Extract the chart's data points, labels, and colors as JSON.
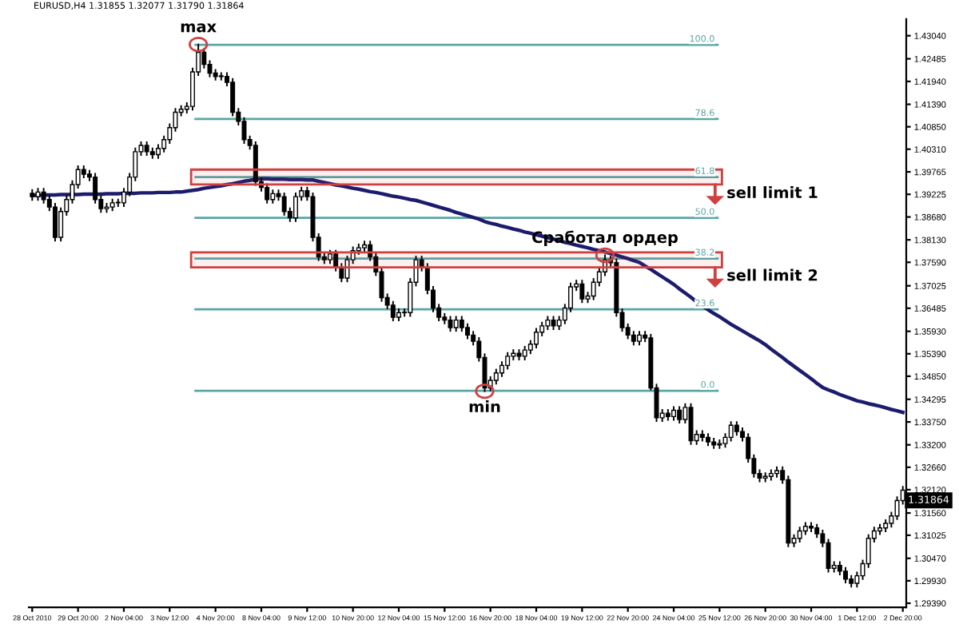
{
  "chart_data": {
    "type": "candlestick",
    "title": "EURUSD,H4 1.31855 1.32077 1.31790 1.31864",
    "categories": [
      "28 Oct 2010",
      null,
      null,
      null,
      null,
      null,
      null,
      null,
      "29 Oct 20:00",
      null,
      null,
      null,
      null,
      null,
      null,
      null,
      "2 Nov 04:00",
      null,
      null,
      null,
      null,
      null,
      null,
      null,
      "3 Nov 12:00",
      null,
      null,
      null,
      null,
      null,
      null,
      null,
      "4 Nov 20:00",
      null,
      null,
      null,
      null,
      null,
      null,
      null,
      "8 Nov 04:00",
      null,
      null,
      null,
      null,
      null,
      null,
      null,
      "9 Nov 12:00",
      null,
      null,
      null,
      null,
      null,
      null,
      null,
      "10 Nov 20:00",
      null,
      null,
      null,
      null,
      null,
      null,
      null,
      "12 Nov 04:00",
      null,
      null,
      null,
      null,
      null,
      null,
      null,
      "15 Nov 12:00",
      null,
      null,
      null,
      null,
      null,
      null,
      null,
      "16 Nov 20:00",
      null,
      null,
      null,
      null,
      null,
      null,
      null,
      "18 Nov 04:00",
      null,
      null,
      null,
      null,
      null,
      null,
      null,
      "19 Nov 12:00",
      null,
      null,
      null,
      null,
      null,
      null,
      null,
      "22 Nov 20:00",
      null,
      null,
      null,
      null,
      null,
      null,
      null,
      "24 Nov 04:00",
      null,
      null,
      null,
      null,
      null,
      null,
      null,
      "25 Nov 12:00",
      null,
      null,
      null,
      null,
      null,
      null,
      null,
      "26 Nov 20:00",
      null,
      null,
      null,
      null,
      null,
      null,
      null,
      "30 Nov 04:00",
      null,
      null,
      null,
      null,
      null,
      null,
      null,
      "1 Dec 12:00",
      null,
      null,
      null,
      null,
      null,
      null,
      null,
      "2 Dec 20:00"
    ],
    "ohlc": [
      [
        1.3925,
        1.3933,
        1.3909,
        1.3917
      ],
      [
        1.3917,
        1.3936,
        1.3909,
        1.3928
      ],
      [
        1.3928,
        1.3936,
        1.3902,
        1.391
      ],
      [
        1.391,
        1.3918,
        1.3884,
        1.3892
      ],
      [
        1.3892,
        1.39,
        1.3811,
        1.3819
      ],
      [
        1.3819,
        1.3889,
        1.3811,
        1.3881
      ],
      [
        1.3881,
        1.3918,
        1.3873,
        1.391
      ],
      [
        1.391,
        1.3954,
        1.3902,
        1.3946
      ],
      [
        1.3946,
        1.399,
        1.3938,
        1.3982
      ],
      [
        1.3982,
        1.399,
        1.3963,
        1.3971
      ],
      [
        1.3971,
        1.3979,
        1.3956,
        1.3964
      ],
      [
        1.3964,
        1.3972,
        1.3902,
        1.391
      ],
      [
        1.391,
        1.3918,
        1.388,
        1.3888
      ],
      [
        1.3888,
        1.39,
        1.388,
        1.3892
      ],
      [
        1.3892,
        1.391,
        1.3884,
        1.3902
      ],
      [
        1.3902,
        1.391,
        1.3894,
        1.3902
      ],
      [
        1.3902,
        1.3936,
        1.3894,
        1.3928
      ],
      [
        1.3928,
        1.3972,
        1.392,
        1.3964
      ],
      [
        1.3964,
        1.4033,
        1.3956,
        1.4025
      ],
      [
        1.4025,
        1.4048,
        1.4017,
        1.404
      ],
      [
        1.404,
        1.4048,
        1.4017,
        1.4025
      ],
      [
        1.4025,
        1.4033,
        1.401,
        1.4018
      ],
      [
        1.4018,
        1.4041,
        1.401,
        1.4033
      ],
      [
        1.4033,
        1.4062,
        1.4025,
        1.4054
      ],
      [
        1.4054,
        1.4091,
        1.4046,
        1.4083
      ],
      [
        1.4083,
        1.4128,
        1.4075,
        1.412
      ],
      [
        1.412,
        1.4135,
        1.4112,
        1.4127
      ],
      [
        1.4127,
        1.4142,
        1.4119,
        1.4134
      ],
      [
        1.4134,
        1.4225,
        1.4126,
        1.4217
      ],
      [
        1.4217,
        1.4283,
        1.4209,
        1.4264
      ],
      [
        1.4264,
        1.4272,
        1.4227,
        1.4235
      ],
      [
        1.4235,
        1.4243,
        1.4206,
        1.4214
      ],
      [
        1.4214,
        1.4222,
        1.4198,
        1.4206
      ],
      [
        1.4206,
        1.4214,
        1.4198,
        1.4206
      ],
      [
        1.4206,
        1.4214,
        1.4184,
        1.4192
      ],
      [
        1.4192,
        1.42,
        1.4112,
        1.412
      ],
      [
        1.412,
        1.4128,
        1.409,
        1.4098
      ],
      [
        1.4098,
        1.4106,
        1.4046,
        1.4054
      ],
      [
        1.4054,
        1.4062,
        1.4032,
        1.404
      ],
      [
        1.404,
        1.4048,
        1.3945,
        1.3953
      ],
      [
        1.3953,
        1.3961,
        1.3931,
        1.3939
      ],
      [
        1.3939,
        1.3947,
        1.3902,
        1.391
      ],
      [
        1.391,
        1.3932,
        1.3902,
        1.3924
      ],
      [
        1.3924,
        1.3932,
        1.3909,
        1.3917
      ],
      [
        1.3917,
        1.3925,
        1.3873,
        1.3881
      ],
      [
        1.3881,
        1.3889,
        1.3858,
        1.3866
      ],
      [
        1.3866,
        1.3925,
        1.3858,
        1.3917
      ],
      [
        1.3917,
        1.3939,
        1.3909,
        1.3931
      ],
      [
        1.3931,
        1.3939,
        1.3909,
        1.3917
      ],
      [
        1.3917,
        1.3925,
        1.3811,
        1.3819
      ],
      [
        1.3819,
        1.3827,
        1.3764,
        1.3772
      ],
      [
        1.3772,
        1.378,
        1.3757,
        1.3765
      ],
      [
        1.3765,
        1.3787,
        1.3757,
        1.3779
      ],
      [
        1.3779,
        1.3787,
        1.3739,
        1.3747
      ],
      [
        1.3747,
        1.3755,
        1.3713,
        1.3721
      ],
      [
        1.3721,
        1.3773,
        1.3713,
        1.3765
      ],
      [
        1.3765,
        1.3795,
        1.3757,
        1.3787
      ],
      [
        1.3787,
        1.3802,
        1.3779,
        1.3794
      ],
      [
        1.3794,
        1.3809,
        1.3786,
        1.3801
      ],
      [
        1.3801,
        1.3809,
        1.3764,
        1.3772
      ],
      [
        1.3772,
        1.378,
        1.3728,
        1.3736
      ],
      [
        1.3736,
        1.3744,
        1.3666,
        1.3674
      ],
      [
        1.3674,
        1.3682,
        1.3648,
        1.3656
      ],
      [
        1.3656,
        1.3664,
        1.3619,
        1.3627
      ],
      [
        1.3627,
        1.3646,
        1.3619,
        1.3638
      ],
      [
        1.3638,
        1.3646,
        1.363,
        1.3638
      ],
      [
        1.3638,
        1.3719,
        1.363,
        1.3711
      ],
      [
        1.3711,
        1.3773,
        1.3703,
        1.3765
      ],
      [
        1.3765,
        1.3773,
        1.3739,
        1.3747
      ],
      [
        1.3747,
        1.3755,
        1.3684,
        1.3692
      ],
      [
        1.3692,
        1.37,
        1.3641,
        1.3649
      ],
      [
        1.3649,
        1.3657,
        1.3619,
        1.3627
      ],
      [
        1.3627,
        1.3635,
        1.3612,
        1.362
      ],
      [
        1.362,
        1.3628,
        1.3594,
        1.3602
      ],
      [
        1.3602,
        1.3628,
        1.3594,
        1.362
      ],
      [
        1.362,
        1.3628,
        1.3594,
        1.3602
      ],
      [
        1.3602,
        1.361,
        1.3576,
        1.3584
      ],
      [
        1.3584,
        1.3592,
        1.3561,
        1.3569
      ],
      [
        1.3569,
        1.3577,
        1.3522,
        1.353
      ],
      [
        1.353,
        1.3538,
        1.3449,
        1.3457
      ],
      [
        1.3457,
        1.3483,
        1.3451,
        1.3475
      ],
      [
        1.3475,
        1.3501,
        1.3467,
        1.3493
      ],
      [
        1.3493,
        1.3519,
        1.3485,
        1.3511
      ],
      [
        1.3511,
        1.3541,
        1.3503,
        1.3533
      ],
      [
        1.3533,
        1.3548,
        1.3525,
        1.354
      ],
      [
        1.354,
        1.3548,
        1.3525,
        1.3533
      ],
      [
        1.3533,
        1.3556,
        1.3525,
        1.3548
      ],
      [
        1.3548,
        1.357,
        1.354,
        1.3562
      ],
      [
        1.3562,
        1.3599,
        1.3554,
        1.3591
      ],
      [
        1.3591,
        1.3614,
        1.3583,
        1.3606
      ],
      [
        1.3606,
        1.3628,
        1.3598,
        1.362
      ],
      [
        1.362,
        1.3628,
        1.3598,
        1.3606
      ],
      [
        1.3606,
        1.3628,
        1.3598,
        1.362
      ],
      [
        1.362,
        1.3657,
        1.3612,
        1.3649
      ],
      [
        1.3649,
        1.3708,
        1.3641,
        1.37
      ],
      [
        1.37,
        1.3715,
        1.3692,
        1.3707
      ],
      [
        1.3707,
        1.3715,
        1.3663,
        1.3671
      ],
      [
        1.3671,
        1.3686,
        1.3663,
        1.3678
      ],
      [
        1.3678,
        1.3719,
        1.367,
        1.3711
      ],
      [
        1.3711,
        1.3744,
        1.3703,
        1.3736
      ],
      [
        1.3736,
        1.3776,
        1.3728,
        1.3765
      ],
      [
        1.3765,
        1.3773,
        1.375,
        1.3758
      ],
      [
        1.3758,
        1.3766,
        1.363,
        1.3638
      ],
      [
        1.3638,
        1.3646,
        1.3594,
        1.3602
      ],
      [
        1.3602,
        1.361,
        1.3576,
        1.3584
      ],
      [
        1.3584,
        1.3592,
        1.3561,
        1.3569
      ],
      [
        1.3569,
        1.3592,
        1.3561,
        1.3584
      ],
      [
        1.3584,
        1.3592,
        1.3569,
        1.3577
      ],
      [
        1.3577,
        1.3585,
        1.3453,
        1.3457
      ],
      [
        1.3457,
        1.3465,
        1.3377,
        1.3385
      ],
      [
        1.3385,
        1.3404,
        1.3377,
        1.3396
      ],
      [
        1.3396,
        1.3404,
        1.338,
        1.3388
      ],
      [
        1.3388,
        1.3411,
        1.338,
        1.3403
      ],
      [
        1.3403,
        1.3411,
        1.3373,
        1.3381
      ],
      [
        1.3381,
        1.3418,
        1.3373,
        1.341
      ],
      [
        1.341,
        1.3418,
        1.3322,
        1.333
      ],
      [
        1.333,
        1.3353,
        1.3322,
        1.3345
      ],
      [
        1.3345,
        1.3353,
        1.333,
        1.3338
      ],
      [
        1.3338,
        1.3346,
        1.3319,
        1.3327
      ],
      [
        1.3327,
        1.3335,
        1.3312,
        1.332
      ],
      [
        1.332,
        1.3331,
        1.3312,
        1.3323
      ],
      [
        1.3323,
        1.3346,
        1.3315,
        1.3338
      ],
      [
        1.3338,
        1.3375,
        1.333,
        1.3367
      ],
      [
        1.3367,
        1.3375,
        1.3344,
        1.3352
      ],
      [
        1.3352,
        1.336,
        1.333,
        1.3338
      ],
      [
        1.3338,
        1.3346,
        1.3279,
        1.3287
      ],
      [
        1.3287,
        1.3295,
        1.3243,
        1.3251
      ],
      [
        1.3251,
        1.3259,
        1.3232,
        1.324
      ],
      [
        1.324,
        1.3252,
        1.3232,
        1.3244
      ],
      [
        1.3244,
        1.3259,
        1.3236,
        1.3251
      ],
      [
        1.3251,
        1.3266,
        1.3243,
        1.3258
      ],
      [
        1.3258,
        1.3266,
        1.3228,
        1.3236
      ],
      [
        1.3236,
        1.3244,
        1.3076,
        1.3084
      ],
      [
        1.3084,
        1.3103,
        1.3076,
        1.3095
      ],
      [
        1.3095,
        1.3121,
        1.3087,
        1.3113
      ],
      [
        1.3113,
        1.3132,
        1.3105,
        1.3124
      ],
      [
        1.3124,
        1.3132,
        1.3112,
        1.312
      ],
      [
        1.312,
        1.3128,
        1.3098,
        1.3106
      ],
      [
        1.3106,
        1.3114,
        1.3076,
        1.3084
      ],
      [
        1.3084,
        1.3092,
        1.3015,
        1.3023
      ],
      [
        1.3023,
        1.3038,
        1.3015,
        1.303
      ],
      [
        1.303,
        1.3038,
        1.3008,
        1.3016
      ],
      [
        1.3016,
        1.3024,
        1.2989,
        1.2997
      ],
      [
        1.2997,
        1.3005,
        1.2979,
        1.2987
      ],
      [
        1.2987,
        1.3013,
        1.2979,
        1.3005
      ],
      [
        1.3005,
        1.3042,
        1.2997,
        1.3034
      ],
      [
        1.3034,
        1.3103,
        1.3026,
        1.3095
      ],
      [
        1.3095,
        1.3121,
        1.3087,
        1.3113
      ],
      [
        1.3113,
        1.3128,
        1.3105,
        1.312
      ],
      [
        1.312,
        1.3139,
        1.3112,
        1.3131
      ],
      [
        1.3131,
        1.3157,
        1.3123,
        1.3149
      ],
      [
        1.3149,
        1.3194,
        1.3141,
        1.3186
      ],
      [
        1.3186,
        1.3219,
        1.3178,
        1.3211
      ]
    ],
    "series": [
      {
        "type": "line",
        "color": "#1c1c6e",
        "values": [
          1.392,
          1.392,
          1.3921,
          1.3921,
          1.3921,
          1.3922,
          1.3922,
          1.3922,
          1.3922,
          1.3923,
          1.3923,
          1.3923,
          1.3923,
          1.3924,
          1.3924,
          1.3924,
          1.3925,
          1.3925,
          1.3925,
          1.3926,
          1.3926,
          1.3926,
          1.3927,
          1.3927,
          1.3927,
          1.3928,
          1.3928,
          1.393,
          1.3932,
          1.3934,
          1.3937,
          1.3939,
          1.3941,
          1.3943,
          1.3946,
          1.3948,
          1.3951,
          1.3954,
          1.3956,
          1.3959,
          1.396,
          1.396,
          1.3959,
          1.3959,
          1.3959,
          1.3958,
          1.3958,
          1.3958,
          1.3957,
          1.3957,
          1.3954,
          1.3951,
          1.3948,
          1.3945,
          1.3943,
          1.394,
          1.3937,
          1.3935,
          1.3932,
          1.3929,
          1.3927,
          1.3924,
          1.3921,
          1.3918,
          1.3916,
          1.3913,
          1.391,
          1.3908,
          1.3904,
          1.39,
          1.3896,
          1.3892,
          1.3888,
          1.3884,
          1.3879,
          1.3875,
          1.3871,
          1.3867,
          1.3863,
          1.3857,
          1.3853,
          1.385,
          1.3846,
          1.3843,
          1.3839,
          1.3836,
          1.3832,
          1.3829,
          1.3825,
          1.3822,
          1.3818,
          1.3815,
          1.3811,
          1.3807,
          1.3804,
          1.38,
          1.3797,
          1.3794,
          1.379,
          1.3787,
          1.3784,
          1.378,
          1.3776,
          1.3772,
          1.3768,
          1.3763,
          1.3759,
          1.375,
          1.3742,
          1.3733,
          1.3724,
          1.3715,
          1.3706,
          1.3695,
          1.3685,
          1.3675,
          1.3664,
          1.3654,
          1.3645,
          1.3636,
          1.3628,
          1.3619,
          1.361,
          1.3602,
          1.3594,
          1.3586,
          1.3578,
          1.357,
          1.3561,
          1.355,
          1.354,
          1.353,
          1.3519,
          1.3509,
          1.3499,
          1.3489,
          1.3479,
          1.3468,
          1.3458,
          1.3452,
          1.3447,
          1.3441,
          1.3436,
          1.3431,
          1.3426,
          1.3423,
          1.3419,
          1.3416,
          1.3413,
          1.3409,
          1.3405,
          1.3402,
          1.3398
        ]
      }
    ],
    "ylim": [
      1.2929,
      1.4344
    ],
    "yticks": [
      {
        "value": 1.4304,
        "label": "1.43040"
      },
      {
        "value": 1.42485,
        "label": "1.42485"
      },
      {
        "value": 1.4194,
        "label": "1.41940"
      },
      {
        "value": 1.4139,
        "label": "1.41390"
      },
      {
        "value": 1.4085,
        "label": "1.40850"
      },
      {
        "value": 1.4031,
        "label": "1.40310"
      },
      {
        "value": 1.39765,
        "label": "1.39765"
      },
      {
        "value": 1.39225,
        "label": "1.39225"
      },
      {
        "value": 1.3868,
        "label": "1.38680"
      },
      {
        "value": 1.3813,
        "label": "1.38130"
      },
      {
        "value": 1.3759,
        "label": "1.37590"
      },
      {
        "value": 1.37025,
        "label": "1.37025"
      },
      {
        "value": 1.36485,
        "label": "1.36485"
      },
      {
        "value": 1.3593,
        "label": "1.35930"
      },
      {
        "value": 1.3539,
        "label": "1.35390"
      },
      {
        "value": 1.3485,
        "label": "1.34850"
      },
      {
        "value": 1.34295,
        "label": "1.34295"
      },
      {
        "value": 1.3375,
        "label": "1.33750"
      },
      {
        "value": 1.332,
        "label": "1.33200"
      },
      {
        "value": 1.3266,
        "label": "1.32660"
      },
      {
        "value": 1.3212,
        "label": "1.32120"
      },
      {
        "value": 1.3156,
        "label": "1.31560"
      },
      {
        "value": 1.31025,
        "label": "1.31025"
      },
      {
        "value": 1.3047,
        "label": "1.30470"
      },
      {
        "value": 1.2993,
        "label": "1.29930"
      },
      {
        "value": 1.2939,
        "label": "1.29390"
      }
    ],
    "ref_lines": [
      {
        "axis": "y",
        "value": 1.4282,
        "color": "#5aa5a5"
      },
      {
        "axis": "y",
        "value": 1.4104,
        "color": "#5aa5a5"
      },
      {
        "axis": "y",
        "value": 1.3964,
        "color": "#5aa5a5"
      },
      {
        "axis": "y",
        "value": 1.3866,
        "color": "#5aa5a5"
      },
      {
        "axis": "y",
        "value": 1.3768,
        "color": "#5aa5a5"
      },
      {
        "axis": "y",
        "value": 1.3646,
        "color": "#5aa5a5"
      },
      {
        "axis": "y",
        "value": 1.345,
        "color": "#5aa5a5"
      }
    ],
    "bands": [
      {
        "axis": "y",
        "from": 1.3946,
        "to": 1.3982,
        "label": "sell limit 1",
        "color": "#d04040"
      },
      {
        "axis": "y",
        "from": 1.3747,
        "to": 1.3783,
        "label": "sell limit 2",
        "color": "#d04040"
      }
    ],
    "annotations": [
      {
        "text": "max",
        "y": 1.4283
      },
      {
        "text": "min",
        "y": 1.3449
      },
      {
        "text": "100.0",
        "y": 1.4282
      },
      {
        "text": "78.6",
        "y": 1.4104
      },
      {
        "text": "61.8",
        "y": 1.3964
      },
      {
        "text": "50.0",
        "y": 1.3866
      },
      {
        "text": "38.2",
        "y": 1.3768
      },
      {
        "text": "23.6",
        "y": 1.3646
      },
      {
        "text": "0.0",
        "y": 1.345
      },
      {
        "text": "Сработал ордер",
        "y": 1.3776
      },
      {
        "text": "1.31864",
        "y": 1.31864
      }
    ]
  }
}
